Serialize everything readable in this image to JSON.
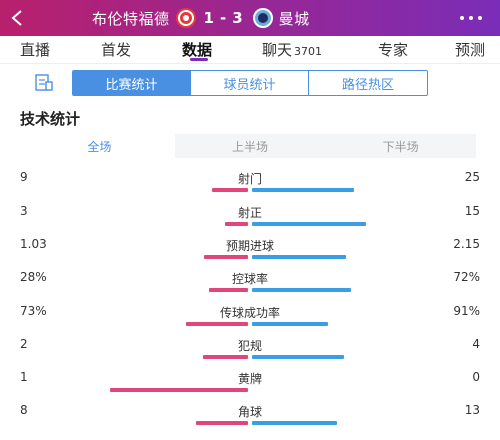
{
  "header": {
    "home_team": "布伦特福德",
    "away_team": "曼城",
    "home_score": "1",
    "separator": "-",
    "away_score": "3",
    "back_icon": "chevron-left-icon",
    "more_icon": "more-dots-icon",
    "accent_start": "#b8206c",
    "accent_end": "#7a2db8"
  },
  "tabs": [
    {
      "label": "直播",
      "active": false
    },
    {
      "label": "首发",
      "active": false
    },
    {
      "label": "数据",
      "active": true
    },
    {
      "label": "聊天",
      "count": "3701",
      "active": false
    },
    {
      "label": "专家",
      "active": false
    },
    {
      "label": "预测",
      "active": false
    }
  ],
  "subtabs": [
    {
      "label": "比赛统计",
      "active": true
    },
    {
      "label": "球员统计",
      "active": false
    },
    {
      "label": "路径热区",
      "active": false
    }
  ],
  "section_title": "技术统计",
  "periods": [
    {
      "label": "全场",
      "active": true
    },
    {
      "label": "上半场",
      "active": false
    },
    {
      "label": "下半场",
      "active": false
    }
  ],
  "colors": {
    "home": "#e0457b",
    "away": "#3a9ee4",
    "selected": "#4a90e2"
  },
  "stats": [
    {
      "name": "射门",
      "home": "9",
      "away": "25",
      "home_frac": 0.26,
      "away_frac": 0.74
    },
    {
      "name": "射正",
      "home": "3",
      "away": "15",
      "home_frac": 0.17,
      "away_frac": 0.83
    },
    {
      "name": "预期进球",
      "home": "1.03",
      "away": "2.15",
      "home_frac": 0.32,
      "away_frac": 0.68
    },
    {
      "name": "控球率",
      "home": "28%",
      "away": "72%",
      "home_frac": 0.28,
      "away_frac": 0.72
    },
    {
      "name": "传球成功率",
      "home": "73%",
      "away": "91%",
      "home_frac": 0.45,
      "away_frac": 0.55
    },
    {
      "name": "犯规",
      "home": "2",
      "away": "4",
      "home_frac": 0.33,
      "away_frac": 0.67
    },
    {
      "name": "黄牌",
      "home": "1",
      "away": "0",
      "home_frac": 1.0,
      "away_frac": 0.0
    },
    {
      "name": "角球",
      "home": "8",
      "away": "13",
      "home_frac": 0.38,
      "away_frac": 0.62
    }
  ]
}
